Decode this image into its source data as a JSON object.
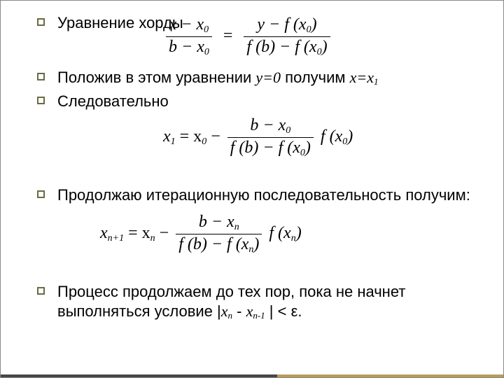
{
  "slide": {
    "background_color": "#ffffff",
    "bullet_border_color": "#6a6a45",
    "footer_bar_left": "#464646",
    "footer_bar_right": "#b99b5b",
    "body_fontsize": 22,
    "eq_fontsize": 24
  },
  "bullets": {
    "b1": "Уравнение хорды",
    "b2_pre": "Положив в этом уравнении ",
    "b2_y": "y=0",
    "b2_mid": " получим ",
    "b2_x": "x=x",
    "b2_xsub": "1",
    "b3": "Следовательно",
    "b4": "Продолжаю итерационную последовательность получим:",
    "b5_pre": "Процесс продолжаем до тех пор, пока не начнет выполняться условие |",
    "b5_xn": "x",
    "b5_nsub": "n",
    "b5_minus": " - ",
    "b5_xn1": "x",
    "b5_n1sub": "n-1",
    "b5_post": " | < ε."
  },
  "equations": {
    "eq1": {
      "lhs_num": "x − x",
      "lhs_num_sub": "0",
      "lhs_den": "b − x",
      "lhs_den_sub": "0",
      "eq_sign": "=",
      "rhs_num_a": "y − f (x",
      "rhs_num_sub": "0",
      "rhs_num_b": ")",
      "rhs_den_a": "f (b) − f (x",
      "rhs_den_sub": "0",
      "rhs_den_b": ")"
    },
    "eq2": {
      "lhs": "x",
      "lhs_sub": "1",
      "eq_mid": " = x",
      "mid_sub": "0",
      "minus": " − ",
      "num_a": "b − x",
      "num_sub": "0",
      "den_a": "f (b) − f (x",
      "den_sub": "0",
      "den_b": ")",
      "tail_a": " f (x",
      "tail_sub": "0",
      "tail_b": ")"
    },
    "eq3": {
      "lhs": "x",
      "lhs_sub": "n+1",
      "eq_mid": " = x",
      "mid_sub": "n",
      "minus": " − ",
      "num_a": "b − x",
      "num_sub": "n",
      "den_a": "f (b) − f (x",
      "den_sub": "n",
      "den_b": ")",
      "tail_a": " f (x",
      "tail_sub": "n",
      "tail_b": ")"
    }
  }
}
